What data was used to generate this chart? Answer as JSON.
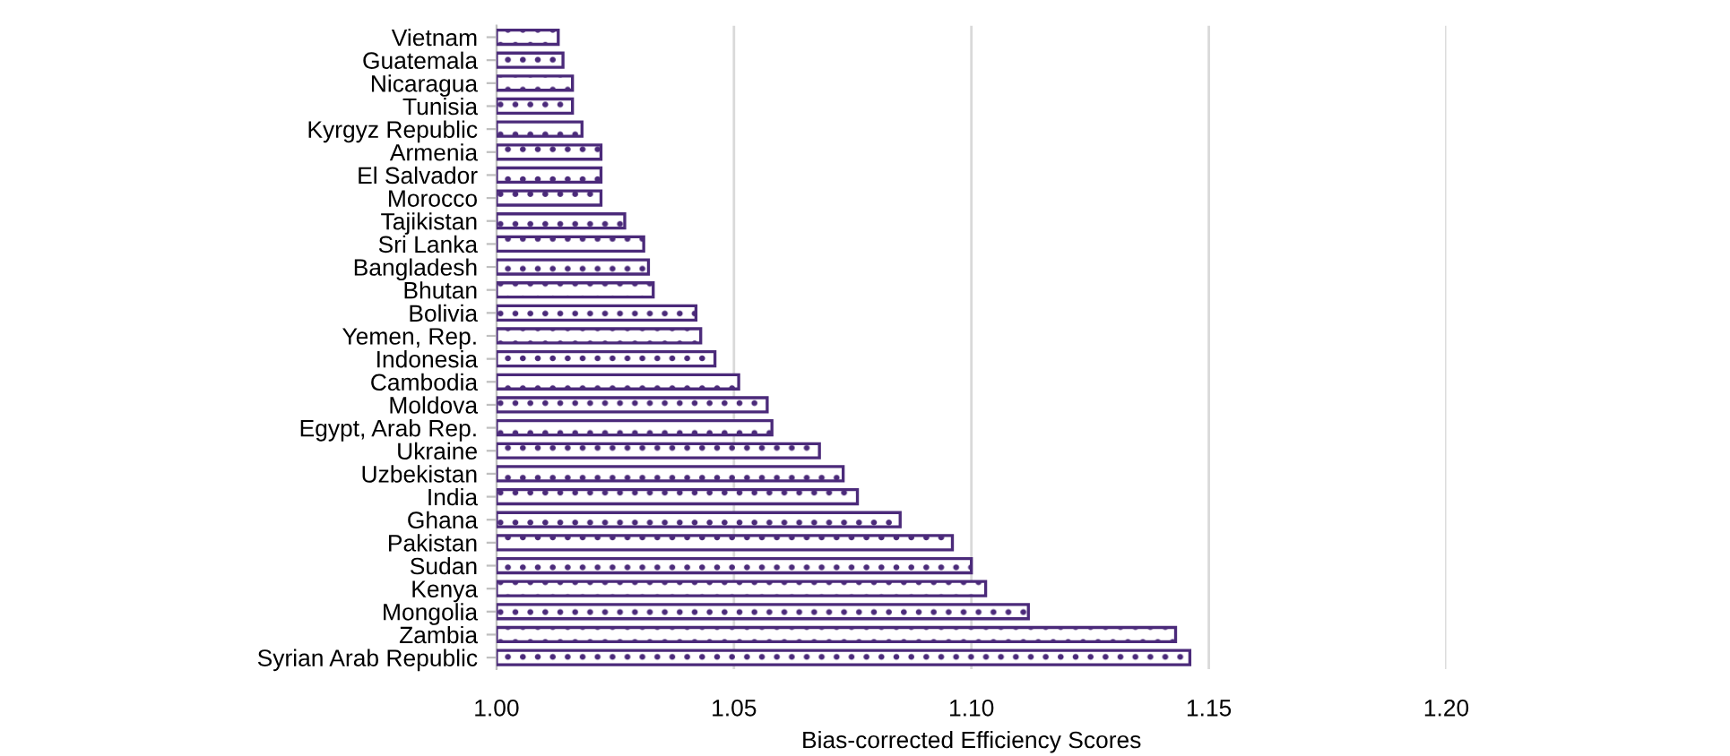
{
  "chart_data": {
    "type": "bar",
    "orientation": "horizontal",
    "xlabel": "Bias-corrected Efficiency Scores",
    "categories": [
      "Vietnam",
      "Guatemala",
      "Nicaragua",
      "Tunisia",
      "Kyrgyz Republic",
      "Armenia",
      "El Salvador",
      "Morocco",
      "Tajikistan",
      "Sri Lanka",
      "Bangladesh",
      "Bhutan",
      "Bolivia",
      "Yemen, Rep.",
      "Indonesia",
      "Cambodia",
      "Moldova",
      "Egypt, Arab Rep.",
      "Ukraine",
      "Uzbekistan",
      "India",
      "Ghana",
      "Pakistan",
      "Sudan",
      "Kenya",
      "Mongolia",
      "Zambia",
      "Syrian Arab Republic"
    ],
    "values": [
      1.013,
      1.014,
      1.016,
      1.016,
      1.018,
      1.022,
      1.022,
      1.022,
      1.027,
      1.031,
      1.032,
      1.033,
      1.042,
      1.043,
      1.046,
      1.051,
      1.057,
      1.058,
      1.068,
      1.073,
      1.076,
      1.085,
      1.096,
      1.1,
      1.103,
      1.112,
      1.143,
      1.146
    ],
    "color": "#4b2a7a",
    "xlim": [
      1.0,
      1.2
    ],
    "xticks": [
      {
        "value": 1.0,
        "label": "1.00"
      },
      {
        "value": 1.05,
        "label": "1.05"
      },
      {
        "value": 1.1,
        "label": "1.10"
      },
      {
        "value": 1.15,
        "label": "1.15"
      },
      {
        "value": 1.2,
        "label": "1.20"
      }
    ],
    "grid": "x"
  }
}
